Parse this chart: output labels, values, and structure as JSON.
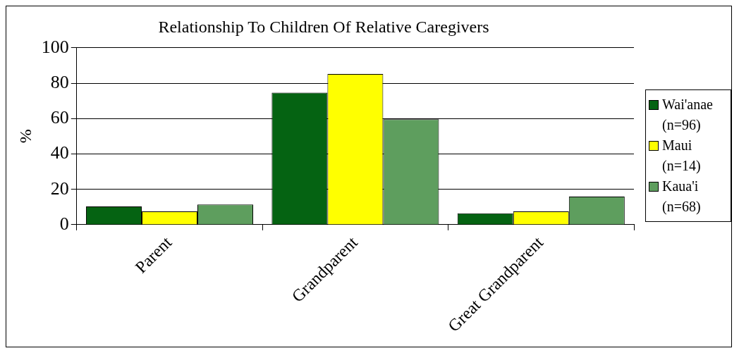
{
  "chart_data": {
    "type": "bar",
    "title": "Relationship To Children Of Relative Caregivers",
    "ylabel": "%",
    "categories": [
      "Parent",
      "Grandparent",
      "Great Grandparent"
    ],
    "series": [
      {
        "name": "Wai'anae (n=96)",
        "color": "#056312",
        "values": [
          10.3,
          74.6,
          6.4
        ]
      },
      {
        "name": "Maui (n=14)",
        "color": "#ffff00",
        "values": [
          7.5,
          85.2,
          7.5
        ]
      },
      {
        "name": "Kaua'i (n=68)",
        "color": "#5e9e5e",
        "values": [
          11.4,
          59.6,
          15.9
        ]
      }
    ],
    "ylim": [
      0,
      100
    ],
    "yticks": [
      0,
      20,
      40,
      60,
      80,
      100
    ],
    "grid": "y",
    "legend": "right"
  }
}
